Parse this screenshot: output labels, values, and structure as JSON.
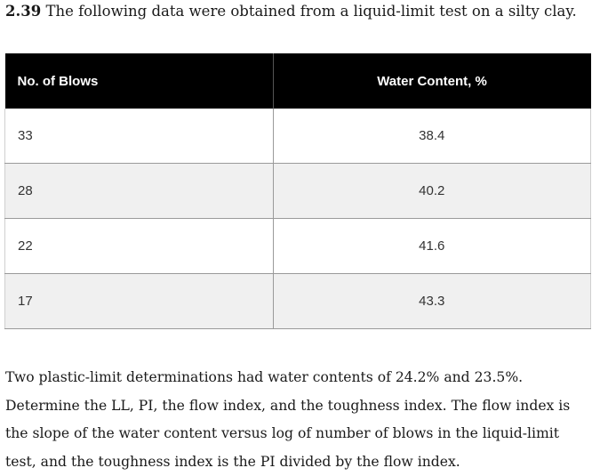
{
  "problem": {
    "number": "2.39",
    "statement": "The following data were obtained from a liquid-limit test on a silty clay."
  },
  "table": {
    "headers": [
      "No. of Blows",
      "Water Content, %"
    ],
    "rows": [
      [
        "33",
        "38.4"
      ],
      [
        "28",
        "40.2"
      ],
      [
        "22",
        "41.6"
      ],
      [
        "17",
        "43.3"
      ]
    ]
  },
  "body_text": "Two plastic-limit determinations had water contents of 24.2% and 23.5%. Determine the LL, PI, the flow index, and the toughness index. The flow index is the slope of the water content versus log of number of blows in the liquid-limit test, and the toughness index is the PI divided by the flow index."
}
